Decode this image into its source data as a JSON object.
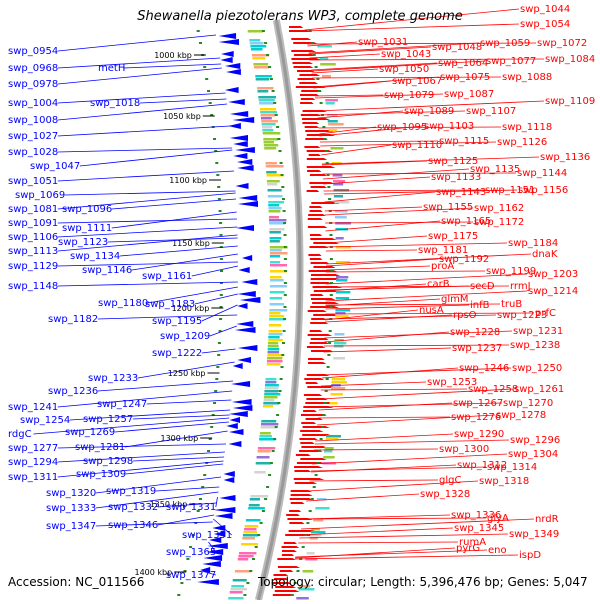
{
  "title": "Shewanella piezotolerans WP3, complete genome",
  "footer": {
    "accession": "Accession: NC_011566",
    "summary": "Topology: circular; Length: 5,396,476 bp; Genes: 5,047"
  },
  "colors": {
    "forward_strand": "#ff0000",
    "reverse_strand": "#0000ff",
    "backbone": "#999999",
    "tick": "#228b22"
  },
  "kbp_ticks": [
    "1000 kbp",
    "1050 kbp",
    "1100 kbp",
    "1150 kbp",
    "1200 kbp",
    "1250 kbp",
    "1300 kbp",
    "1350 kbp",
    "1400 kbp"
  ],
  "left_labels": [
    "swp_0954",
    "swp_0968",
    "metH",
    "swp_0978",
    "swp_1004",
    "swp_1018",
    "swp_1008",
    "swp_1027",
    "swp_1028",
    "swp_1047",
    "swp_1051",
    "swp_1069",
    "swp_1081",
    "swp_1096",
    "swp_1091",
    "swp_1111",
    "swp_1106",
    "swp_1123",
    "swp_1113",
    "swp_1134",
    "swp_1129",
    "swp_1146",
    "swp_1161",
    "swp_1148",
    "swp_1180",
    "swp_1183",
    "swp_1182",
    "swp_1195",
    "swp_1209",
    "swp_1222",
    "swp_1233",
    "swp_1236",
    "swp_1247",
    "swp_1241",
    "swp_1254",
    "swp_1257",
    "rdgC",
    "swp_1269",
    "swp_1277",
    "swp_1281",
    "swp_1294",
    "swp_1298",
    "swp_1311",
    "swp_1309",
    "swp_1319",
    "swp_1320",
    "swp_1331",
    "swp_1332",
    "swp_1333",
    "swp_1346",
    "swp_1347",
    "swp_1351",
    "swp_1365",
    "swp_1377"
  ],
  "right_labels": [
    "swp_1044",
    "swp_1054",
    "swp_1031",
    "swp_1072",
    "swp_1059",
    "swp_1048",
    "swp_1043",
    "swp_1084",
    "swp_1077",
    "swp_1064",
    "swp_1050",
    "swp_1088",
    "swp_1075",
    "swp_1067",
    "swp_1087",
    "swp_1079",
    "swp_1109",
    "swp_1089",
    "swp_1107",
    "swp_1118",
    "swp_1103",
    "swp_1095",
    "swp_1126",
    "swp_1115",
    "swp_1110",
    "swp_1136",
    "swp_1125",
    "swp_1144",
    "swp_1135",
    "swp_1133",
    "swp_1156",
    "swp_1151",
    "swp_1143",
    "swp_1162",
    "swp_1155",
    "swp_1172",
    "swp_1165",
    "swp_1175",
    "swp_1184",
    "swp_1181",
    "dnaK",
    "swp_1192",
    "proA",
    "swp_1199",
    "swp_1203",
    "carB",
    "secD",
    "rrmJ",
    "swp_1214",
    "glmM",
    "infB",
    "truB",
    "nusA",
    "rpsO",
    "swp_1223",
    "prfC",
    "swp_1228",
    "swp_1231",
    "swp_1237",
    "swp_1238",
    "swp_1246",
    "swp_1250",
    "swp_1253",
    "swp_1258",
    "swp_1261",
    "swp_1267",
    "swp_1270",
    "swp_1276",
    "swp_1278",
    "swp_1290",
    "swp_1296",
    "swp_1300",
    "swp_1304",
    "swp_1312",
    "swp_1314",
    "glgC",
    "swp_1318",
    "swp_1328",
    "swp_1336",
    "glyA",
    "nrdR",
    "swp_1345",
    "swp_1349",
    "rumA",
    "pyrG",
    "eno",
    "ispD"
  ]
}
